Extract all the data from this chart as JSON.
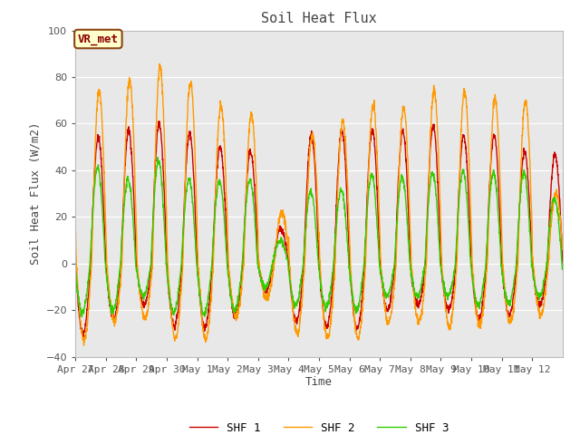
{
  "title": "Soil Heat Flux",
  "ylabel": "Soil Heat Flux (W/m2)",
  "xlabel": "Time",
  "ylim": [
    -40,
    100
  ],
  "bg_outer": "#ffffff",
  "bg_inner": "#e8e8e8",
  "shf1_color": "#cc0000",
  "shf2_color": "#ff9900",
  "shf3_color": "#33cc00",
  "vr_label": "VR_met",
  "legend_labels": [
    "SHF 1",
    "SHF 2",
    "SHF 3"
  ],
  "x_tick_labels": [
    "Apr 27",
    "Apr 28",
    "Apr 29",
    "Apr 30",
    "May 1",
    "May 2",
    "May 3",
    "May 4",
    "May 5",
    "May 6",
    "May 7",
    "May 8",
    "May 9",
    "May 10",
    "May 11",
    "May 12"
  ],
  "days": 16,
  "pts_per_day": 144,
  "day_peaks_shf1": [
    54,
    57,
    60,
    56,
    50,
    48,
    15,
    55,
    57,
    57,
    57,
    59,
    55,
    55,
    48,
    47
  ],
  "day_peaks_shf2": [
    74,
    79,
    84,
    78,
    68,
    64,
    22,
    55,
    61,
    68,
    67,
    75,
    74,
    71,
    70,
    30
  ],
  "day_peaks_shf3": [
    41,
    36,
    44,
    36,
    35,
    36,
    10,
    31,
    32,
    38,
    37,
    39,
    40,
    39,
    39,
    28
  ],
  "day_troughs_shf1": [
    -30,
    -24,
    -18,
    -27,
    -28,
    -23,
    -12,
    -25,
    -27,
    -28,
    -20,
    -18,
    -20,
    -24,
    -22,
    -18
  ],
  "day_troughs_shf2": [
    -33,
    -25,
    -24,
    -32,
    -33,
    -23,
    -15,
    -30,
    -32,
    -32,
    -25,
    -25,
    -27,
    -26,
    -25,
    -22
  ],
  "day_troughs_shf3": [
    -21,
    -20,
    -14,
    -21,
    -22,
    -20,
    -10,
    -18,
    -19,
    -20,
    -14,
    -14,
    -14,
    -18,
    -17,
    -14
  ],
  "linewidth": 1.0,
  "grid_color": "#ffffff",
  "title_fontsize": 11,
  "tick_fontsize": 8,
  "label_fontsize": 9
}
